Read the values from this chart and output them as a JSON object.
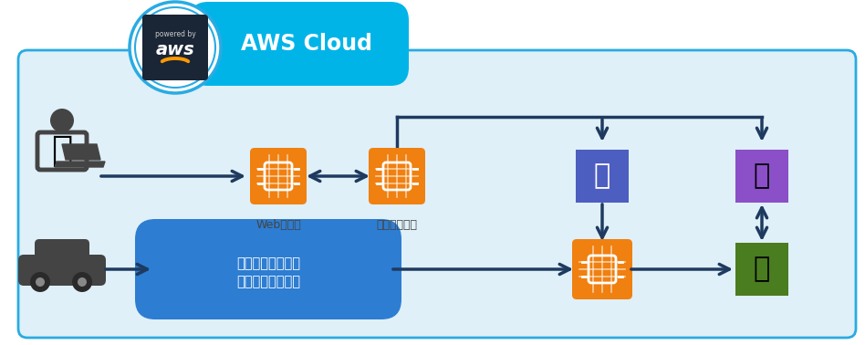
{
  "bg_color": "#dff0f8",
  "border_color": "#29abe2",
  "outer_bg": "#ffffff",
  "aws_circle_color": "#ffffff",
  "aws_circle_border": "#29abe2",
  "aws_dark": "#1a2535",
  "aws_cloud_bg": "#00b4e8",
  "aws_cloud_text": "AWS Cloud",
  "aws_cloud_text_color": "#ffffff",
  "orange_color": "#f08010",
  "blue_icon_color": "#4d5ec1",
  "purple_icon_color": "#8b4fc8",
  "green_icon_color": "#4a7c20",
  "dark_blue_arrow": "#1e3a5f",
  "pill_bg": "#2d7dd2",
  "pill_text_line1": "車両データ蓄積／",
  "pill_text_line2": "道路荔れ情報作成",
  "pill_text_color": "#ffffff",
  "web_label": "Webサイト",
  "map_label": "地図サーバー",
  "label_color": "#444444",
  "icon_person_color": "#444444",
  "icon_car_color": "#444444",
  "lw_arrow": 2.5,
  "lw_border": 2.0
}
